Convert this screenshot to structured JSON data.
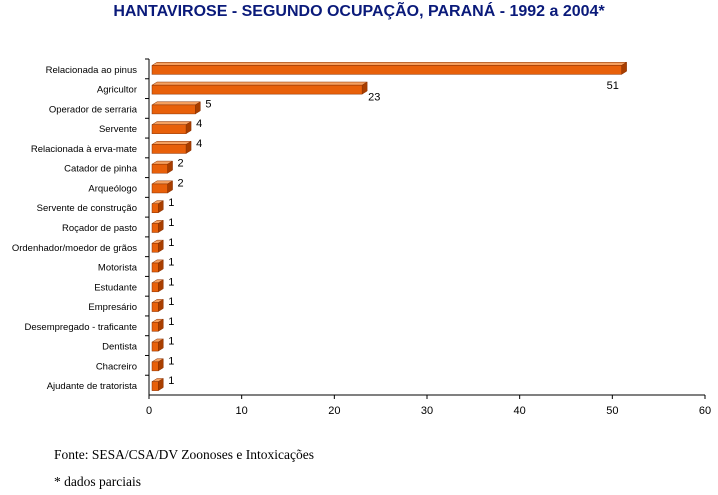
{
  "chart_data": {
    "type": "bar",
    "orientation": "horizontal",
    "title": "HANTAVIROSE - SEGUNDO OCUPAÇÃO, PARANÁ - 1992 a 2004*",
    "categories": [
      "Relacionada ao pinus",
      "Agricultor",
      "Operador de serraria",
      "Servente",
      "Relacionada à erva-mate",
      "Catador de pinha",
      "Arqueólogo",
      "Servente de construção",
      "Roçador de pasto",
      "Ordenhador/moedor de grãos",
      "Motorista",
      "Estudante",
      "Empresário",
      "Desempregado - traficante",
      "Dentista",
      "Chacreiro",
      "Ajudante de tratorista"
    ],
    "values": [
      51,
      23,
      5,
      4,
      4,
      2,
      2,
      1,
      1,
      1,
      1,
      1,
      1,
      1,
      1,
      1,
      1
    ],
    "xlim": [
      0,
      60
    ],
    "xticks": [
      0,
      10,
      20,
      30,
      40,
      50,
      60
    ],
    "xlabel": "",
    "ylabel": "",
    "grid": false,
    "bar_color": "#e8600a"
  },
  "notes": {
    "source": "Fonte: SESA/CSA/DV Zoonoses e Intoxicações",
    "footnote": "* dados parciais"
  }
}
